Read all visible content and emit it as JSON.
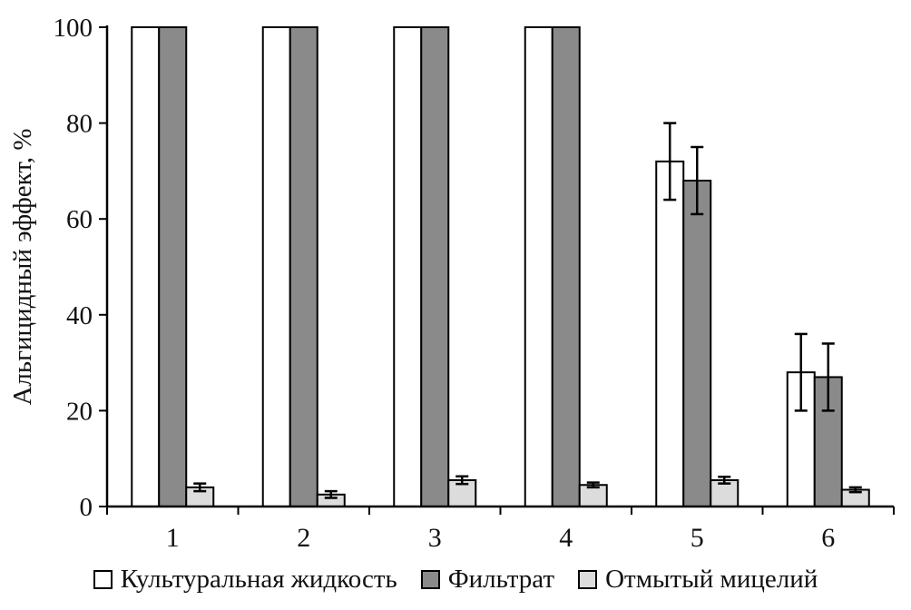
{
  "chart_data": {
    "type": "bar",
    "title": "",
    "xlabel": "",
    "ylabel": "Альгицидный эффект, %",
    "categories": [
      "1",
      "2",
      "3",
      "4",
      "5",
      "6"
    ],
    "ylim": [
      0,
      100
    ],
    "yticks": [
      0,
      20,
      40,
      60,
      80,
      100
    ],
    "grid": false,
    "legend_position": "bottom",
    "axis_color": "#000000",
    "series": [
      {
        "name": "Культуральная жидкость",
        "color": "#ffffff",
        "values": [
          100,
          100,
          100,
          100,
          72,
          28
        ],
        "errors": [
          0,
          0,
          0,
          0,
          8,
          8
        ]
      },
      {
        "name": "Фильтрат",
        "color": "#8a8a8a",
        "values": [
          100,
          100,
          100,
          100,
          68,
          27
        ],
        "errors": [
          0,
          0,
          0,
          0,
          7,
          7
        ]
      },
      {
        "name": "Отмытый мицелий",
        "color": "#dcdcdc",
        "values": [
          4,
          2.5,
          5.5,
          4.5,
          5.5,
          3.5
        ],
        "errors": [
          0.8,
          0.7,
          0.8,
          0.5,
          0.7,
          0.5
        ]
      }
    ]
  }
}
